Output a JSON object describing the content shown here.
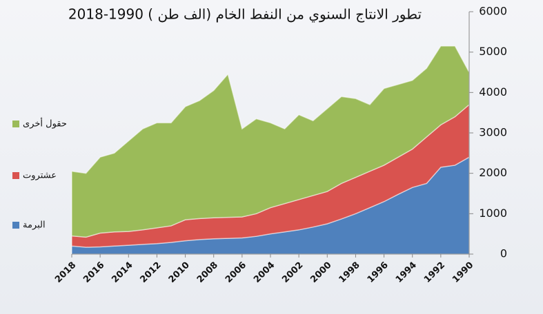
{
  "chart_data": {
    "type": "stacked_area",
    "title": "تطور الانتاج السنوي من النفط الخام (الف طن ) 1990-2018",
    "x": [
      1990,
      1991,
      1992,
      1993,
      1994,
      1995,
      1996,
      1997,
      1998,
      1999,
      2000,
      2001,
      2002,
      2003,
      2004,
      2005,
      2006,
      2007,
      2008,
      2009,
      2010,
      2011,
      2012,
      2013,
      2014,
      2015,
      2016,
      2017,
      2018
    ],
    "xlim": [
      2018,
      1990
    ],
    "xticks": [
      2018,
      2016,
      2014,
      2012,
      2010,
      2008,
      2006,
      2004,
      2002,
      2000,
      1998,
      1996,
      1994,
      1992,
      1990
    ],
    "ylim": [
      0,
      6000
    ],
    "yticks": [
      0,
      1000,
      2000,
      3000,
      4000,
      5000,
      6000
    ],
    "legend": "left",
    "series": [
      {
        "name": "البرمة",
        "color": "#4f81bd",
        "values": [
          2400,
          2200,
          2150,
          1750,
          1650,
          1480,
          1300,
          1150,
          1000,
          870,
          750,
          670,
          600,
          550,
          500,
          440,
          400,
          390,
          380,
          360,
          330,
          290,
          260,
          240,
          220,
          200,
          180,
          170,
          200
        ]
      },
      {
        "name": "عشتروت",
        "color": "#d9534f",
        "values": [
          1300,
          1200,
          1050,
          1150,
          950,
          920,
          900,
          900,
          900,
          880,
          800,
          780,
          750,
          700,
          650,
          560,
          520,
          520,
          520,
          520,
          520,
          410,
          390,
          360,
          340,
          350,
          340,
          250,
          250
        ]
      },
      {
        "name": "حقول أخرى",
        "color": "#9bbb59",
        "values": [
          800,
          1750,
          1950,
          1700,
          1700,
          1800,
          1900,
          1650,
          1950,
          2150,
          2050,
          1850,
          2100,
          1850,
          2100,
          2350,
          2180,
          3540,
          3150,
          2920,
          2800,
          2550,
          2600,
          2500,
          2240,
          1950,
          1880,
          1580,
          1600
        ]
      }
    ]
  }
}
